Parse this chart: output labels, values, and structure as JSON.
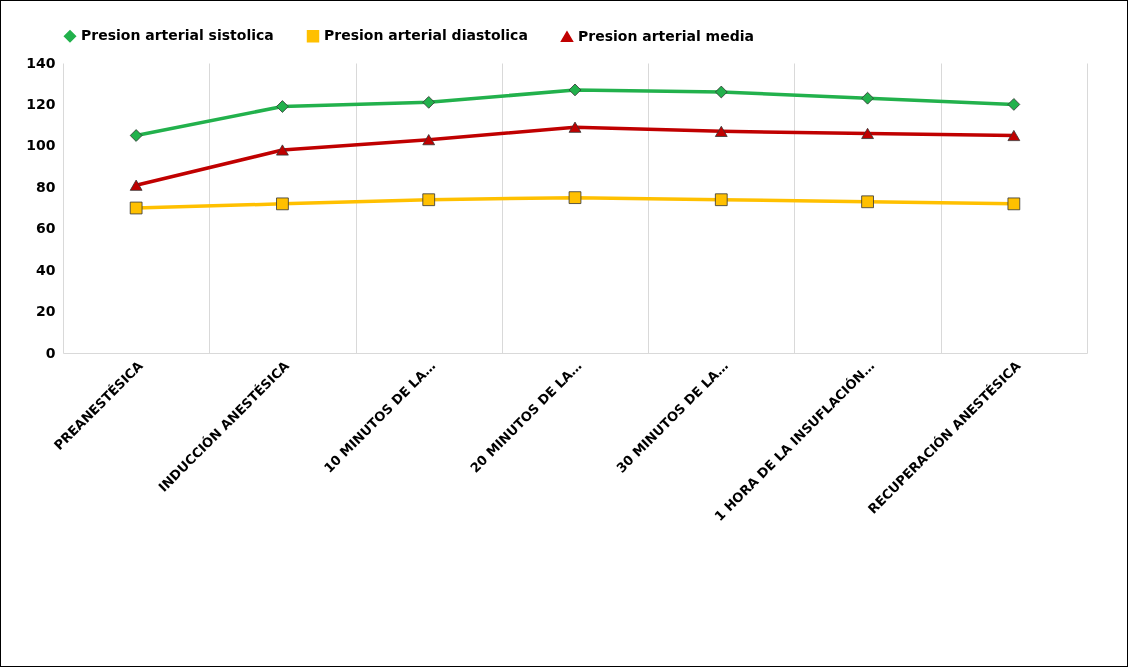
{
  "chart_data": {
    "type": "line",
    "categories": [
      "PREANESTÉSICA",
      "INDUCCIÓN ANESTÉSICA",
      "10 MINUTOS DE LA…",
      "20 MINUTOS DE LA…",
      "30 MINUTOS DE LA…",
      "1 HORA DE LA INSUFLACIÓN…",
      "RECUPERACIÓN ANESTÉSICA"
    ],
    "series": [
      {
        "name": "Presion arterial sistolica",
        "color": "#22b14c",
        "marker": "diamond",
        "values": [
          105,
          119,
          121,
          127,
          126,
          123,
          120
        ]
      },
      {
        "name": "Presion arterial diastolica",
        "color": "#ffc000",
        "marker": "square",
        "values": [
          70,
          72,
          74,
          75,
          74,
          73,
          72
        ]
      },
      {
        "name": "Presion arterial media",
        "color": "#c00000",
        "marker": "triangle",
        "values": [
          81,
          98,
          103,
          109,
          107,
          106,
          105
        ]
      }
    ],
    "ylim": [
      0,
      140
    ],
    "yticks": [
      0,
      20,
      40,
      60,
      80,
      100,
      120,
      140
    ],
    "grid": "x",
    "legend": "top"
  }
}
